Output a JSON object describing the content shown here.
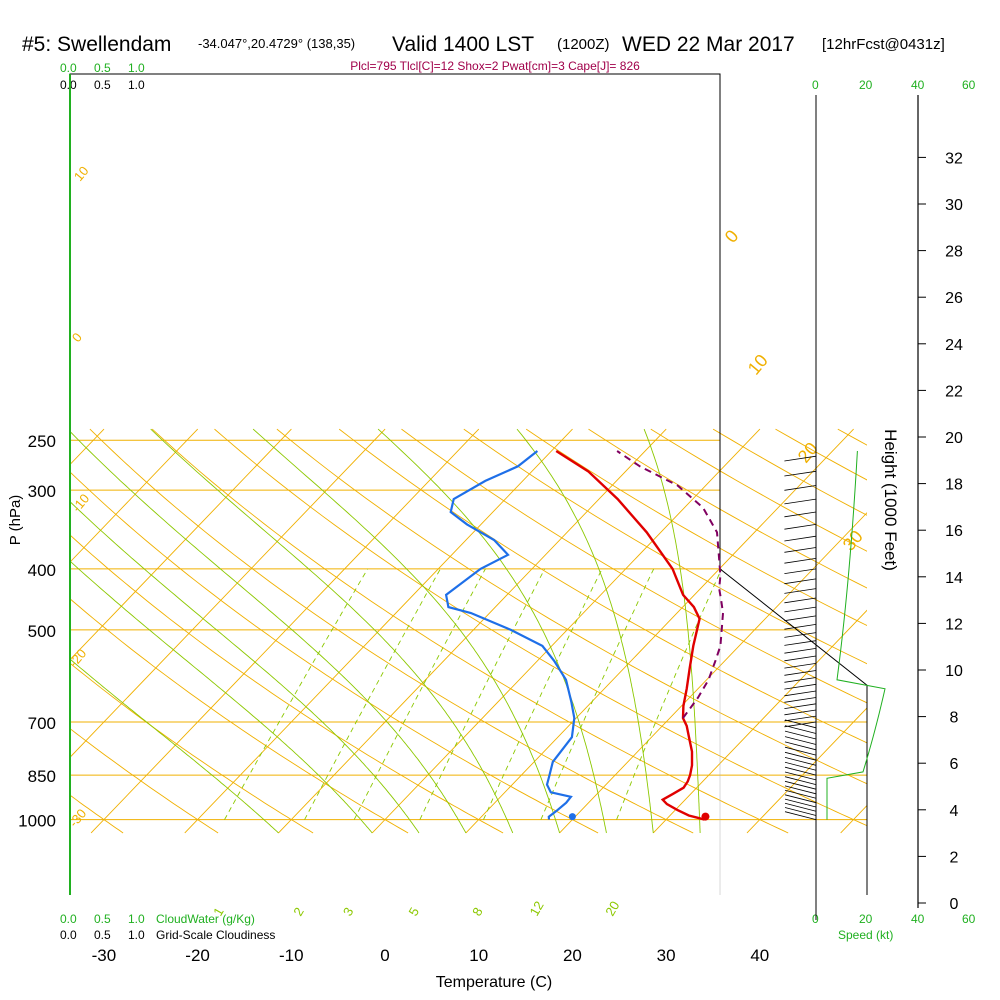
{
  "header": {
    "station": "#5: Swellendam",
    "coords": "-34.047°,20.4729° (138,35)",
    "valid": "Valid 1400 LST",
    "zulu": "(1200Z)",
    "date": "WED 22 Mar 2017",
    "forecast": "[12hrFcst@0431z]",
    "indices": "Plcl=795 Tlcl[C]=12 Shox=2 Pwat[cm]=3 Cape[J]= 826"
  },
  "colors": {
    "temperature": "#e00000",
    "dewpoint": "#1e6fe8",
    "parcel": "#800060",
    "isotherm": "#f0b000",
    "isobar": "#f0b000",
    "dry_adiabat": "#f0b000",
    "moist_adiabat": "#8cc800",
    "mixing_ratio": "#8cc800",
    "cloud": "#20b020",
    "indices_text": "#a0004a"
  },
  "chart_data": {
    "type": "line",
    "title": "#5: Swellendam",
    "xlabel": "Temperature (C)",
    "ylabel": "P (hPa)",
    "y2label": "Height (1000 Feet)",
    "xlim": [
      -30,
      50
    ],
    "plim": [
      1000,
      250
    ],
    "x_ticks": [
      -30,
      -20,
      -10,
      0,
      10,
      20,
      30,
      40
    ],
    "p_ticks": [
      250,
      300,
      400,
      500,
      700,
      850,
      1000
    ],
    "height_ticks": [
      0,
      2,
      4,
      6,
      8,
      10,
      12,
      14,
      16,
      18,
      20,
      22,
      24,
      26,
      28,
      30,
      32
    ],
    "isotherm_labels": [
      "10",
      "0",
      "-10",
      "-20",
      "-30",
      "0",
      "10",
      "20",
      "30"
    ],
    "mixing_ratio_labels": [
      "1",
      "2",
      "3",
      "5",
      "8",
      "12",
      "20"
    ],
    "cloud_scale": {
      "top_green": [
        "0.0",
        "0.5",
        "1.0"
      ],
      "top_black": [
        "0.0",
        "0.5",
        "1.0"
      ],
      "bottom_green": [
        "0.0",
        "0.5",
        "1.0"
      ],
      "bottom_black": [
        "0.0",
        "0.5",
        "1.0"
      ],
      "cloudwater_label": "CloudWater (g/Kg)",
      "cloudiness_label": "Grid-Scale Cloudiness"
    },
    "speed_ticks": [
      "0",
      "20",
      "40",
      "60"
    ],
    "speed_label": "Speed (kt)",
    "series": [
      {
        "points": [
          [
            34.1,
            1000
          ],
          [
            33.4,
            995
          ],
          [
            32,
            985
          ],
          [
            30.2,
            965
          ],
          [
            28.5,
            945
          ],
          [
            27.6,
            930
          ],
          [
            28.1,
            910
          ],
          [
            28.6,
            890
          ],
          [
            28.4,
            870
          ],
          [
            28.0,
            850
          ],
          [
            27.2,
            820
          ],
          [
            25.8,
            780
          ],
          [
            24.0,
            740
          ],
          [
            22.6,
            710
          ],
          [
            21.4,
            690
          ],
          [
            20.2,
            660
          ],
          [
            18.8,
            620
          ],
          [
            17.0,
            575
          ],
          [
            15.1,
            530
          ],
          [
            13.0,
            480
          ],
          [
            11.2,
            460
          ],
          [
            8.8,
            440
          ],
          [
            5.0,
            400
          ],
          [
            -1.5,
            350
          ],
          [
            -8.0,
            310
          ],
          [
            -14.0,
            280
          ],
          [
            -19.5,
            260
          ]
        ]
      },
      {
        "points": [
          [
            17.5,
            1000
          ],
          [
            17.2,
            990
          ],
          [
            17.4,
            970
          ],
          [
            17.6,
            940
          ],
          [
            17.5,
            920
          ],
          [
            14.9,
            905
          ],
          [
            13.7,
            880
          ],
          [
            13.0,
            850
          ],
          [
            12.0,
            810
          ],
          [
            11.8,
            780
          ],
          [
            11.5,
            740
          ],
          [
            9.8,
            690
          ],
          [
            7.8,
            650
          ],
          [
            5.0,
            600
          ],
          [
            1.8,
            560
          ],
          [
            -1.0,
            530
          ],
          [
            -6.0,
            500
          ],
          [
            -12.0,
            470
          ],
          [
            -15.0,
            460
          ],
          [
            -16.5,
            440
          ],
          [
            -15.5,
            400
          ],
          [
            -14.0,
            380
          ],
          [
            -17.0,
            360
          ],
          [
            -21.5,
            340
          ],
          [
            -24.5,
            325
          ],
          [
            -25.5,
            310
          ],
          [
            -24.0,
            290
          ],
          [
            -22.0,
            275
          ],
          [
            -21.5,
            260
          ]
        ]
      },
      {
        "points": [
          [
            21.4,
            690
          ],
          [
            21.3,
            680
          ],
          [
            20.9,
            640
          ],
          [
            20.2,
            600
          ],
          [
            19.0,
            560
          ],
          [
            18.0,
            530
          ],
          [
            16.5,
            500
          ],
          [
            14.9,
            470
          ],
          [
            13.5,
            450
          ],
          [
            12.0,
            430
          ],
          [
            10.8,
            410
          ],
          [
            8.5,
            380
          ],
          [
            6.0,
            350
          ],
          [
            2.0,
            320
          ],
          [
            -3.0,
            295
          ],
          [
            -9.0,
            275
          ],
          [
            -13.0,
            260
          ]
        ]
      }
    ],
    "surface_markers": {
      "temperature": 34.2,
      "dewpoint": 20.0,
      "pressure": 1000
    }
  }
}
